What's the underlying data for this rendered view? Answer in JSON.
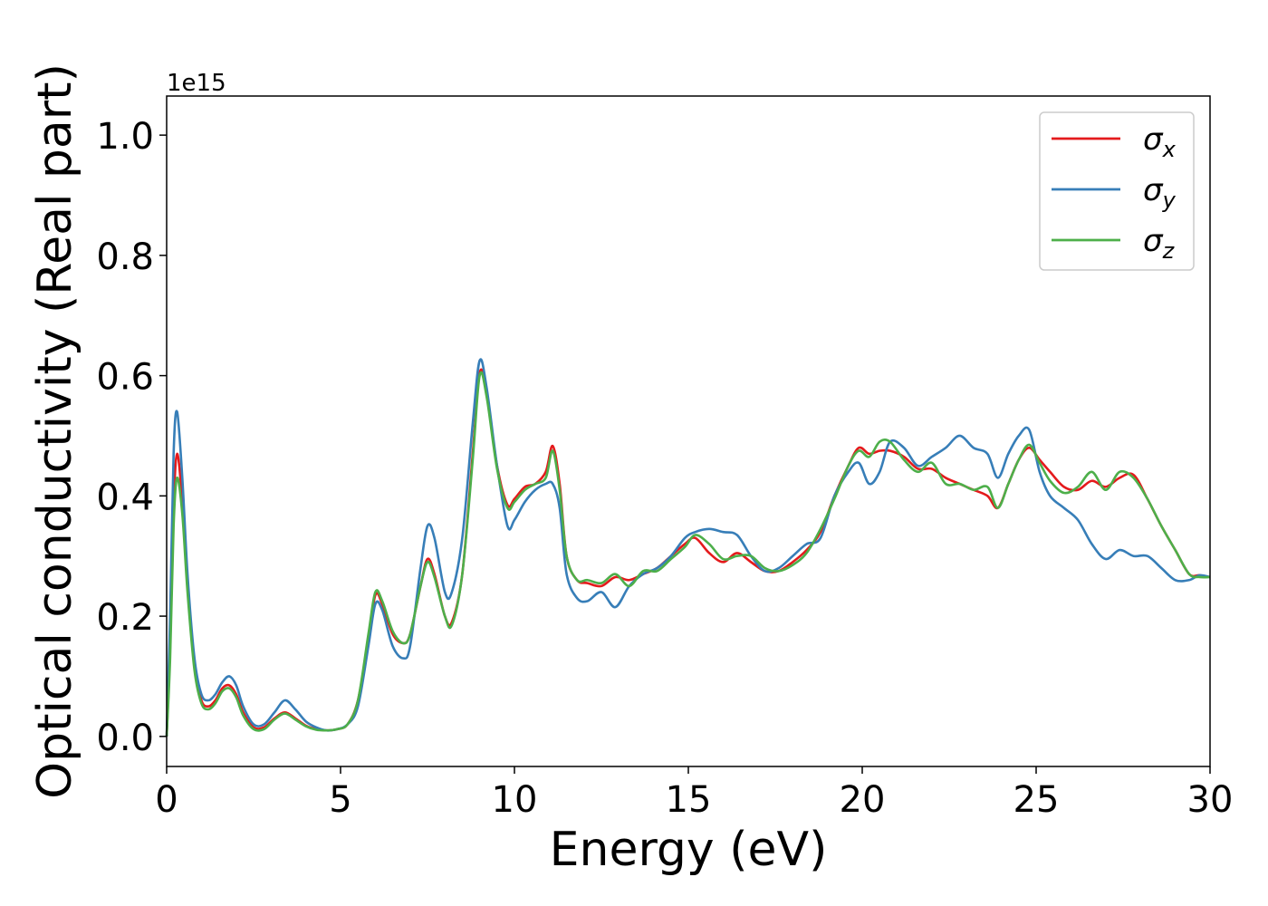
{
  "chart_data": {
    "type": "line",
    "xlabel": "Energy (eV)",
    "ylabel": "Optical conductivity (Real part)",
    "y_offset_label": "1e15",
    "xlim": [
      0,
      30
    ],
    "ylim": [
      -0.05,
      1.065
    ],
    "xticks": [
      0,
      5,
      10,
      15,
      20,
      25,
      30
    ],
    "yticks": [
      0.0,
      0.2,
      0.4,
      0.6,
      0.8,
      1.0
    ],
    "ytick_labels": [
      "0.0",
      "0.2",
      "0.4",
      "0.6",
      "0.8",
      "1.0"
    ],
    "grid": false,
    "legend_position": "top-right",
    "series": [
      {
        "name": "σx",
        "symbol": "σ",
        "subscript": "x",
        "color": "#e41a1c",
        "x": [
          0,
          0.1,
          0.2,
          0.3,
          0.45,
          0.6,
          0.8,
          1.0,
          1.2,
          1.4,
          1.6,
          1.8,
          2.0,
          2.2,
          2.5,
          2.8,
          3.1,
          3.4,
          3.7,
          4.0,
          4.3,
          4.6,
          4.9,
          5.2,
          5.5,
          5.8,
          6.0,
          6.2,
          6.5,
          6.8,
          7.0,
          7.3,
          7.5,
          7.7,
          8.0,
          8.2,
          8.5,
          8.8,
          9.0,
          9.2,
          9.5,
          9.8,
          10.0,
          10.3,
          10.6,
          10.9,
          11.1,
          11.3,
          11.5,
          11.8,
          12.1,
          12.5,
          12.9,
          13.3,
          13.7,
          14.1,
          14.5,
          14.9,
          15.2,
          15.6,
          16.0,
          16.4,
          16.8,
          17.2,
          17.6,
          18.0,
          18.4,
          18.8,
          19.2,
          19.6,
          19.9,
          20.2,
          20.5,
          20.8,
          21.2,
          21.6,
          22.0,
          22.4,
          22.8,
          23.2,
          23.6,
          23.9,
          24.2,
          24.5,
          24.8,
          25.1,
          25.4,
          25.8,
          26.2,
          26.6,
          27.0,
          27.4,
          27.8,
          28.2,
          28.6,
          29.0,
          29.4,
          29.7,
          30.0
        ],
        "y": [
          0.0,
          0.15,
          0.38,
          0.47,
          0.39,
          0.25,
          0.12,
          0.06,
          0.05,
          0.06,
          0.08,
          0.085,
          0.07,
          0.04,
          0.015,
          0.015,
          0.03,
          0.04,
          0.03,
          0.018,
          0.012,
          0.01,
          0.012,
          0.02,
          0.06,
          0.16,
          0.235,
          0.22,
          0.17,
          0.155,
          0.17,
          0.25,
          0.295,
          0.27,
          0.2,
          0.19,
          0.27,
          0.47,
          0.605,
          0.57,
          0.45,
          0.385,
          0.395,
          0.415,
          0.42,
          0.44,
          0.483,
          0.42,
          0.3,
          0.26,
          0.255,
          0.25,
          0.265,
          0.26,
          0.27,
          0.28,
          0.3,
          0.32,
          0.33,
          0.305,
          0.29,
          0.305,
          0.29,
          0.275,
          0.275,
          0.29,
          0.31,
          0.34,
          0.4,
          0.45,
          0.48,
          0.47,
          0.475,
          0.475,
          0.465,
          0.445,
          0.445,
          0.43,
          0.42,
          0.41,
          0.4,
          0.38,
          0.42,
          0.46,
          0.48,
          0.46,
          0.44,
          0.415,
          0.41,
          0.425,
          0.415,
          0.43,
          0.435,
          0.395,
          0.35,
          0.31,
          0.27,
          0.268,
          0.265
        ]
      },
      {
        "name": "σy",
        "symbol": "σ",
        "subscript": "y",
        "color": "#377eb8",
        "x": [
          0,
          0.1,
          0.2,
          0.3,
          0.45,
          0.6,
          0.8,
          1.0,
          1.2,
          1.4,
          1.6,
          1.8,
          2.0,
          2.2,
          2.5,
          2.8,
          3.1,
          3.4,
          3.7,
          4.0,
          4.3,
          4.6,
          4.9,
          5.2,
          5.5,
          5.8,
          6.0,
          6.2,
          6.5,
          6.8,
          7.0,
          7.3,
          7.5,
          7.7,
          8.0,
          8.2,
          8.5,
          8.8,
          9.0,
          9.2,
          9.5,
          9.8,
          10.0,
          10.3,
          10.6,
          10.9,
          11.1,
          11.3,
          11.5,
          11.8,
          12.1,
          12.5,
          12.9,
          13.3,
          13.7,
          14.1,
          14.5,
          14.9,
          15.2,
          15.6,
          16.0,
          16.4,
          16.8,
          17.2,
          17.6,
          18.0,
          18.4,
          18.8,
          19.2,
          19.6,
          19.9,
          20.2,
          20.5,
          20.8,
          21.2,
          21.6,
          22.0,
          22.4,
          22.8,
          23.2,
          23.6,
          23.9,
          24.2,
          24.5,
          24.8,
          25.1,
          25.4,
          25.8,
          26.2,
          26.6,
          27.0,
          27.4,
          27.8,
          28.2,
          28.6,
          29.0,
          29.4,
          29.7,
          30.0
        ],
        "y": [
          0.0,
          0.2,
          0.47,
          0.54,
          0.43,
          0.27,
          0.13,
          0.07,
          0.06,
          0.07,
          0.09,
          0.1,
          0.085,
          0.05,
          0.02,
          0.02,
          0.04,
          0.06,
          0.045,
          0.025,
          0.015,
          0.01,
          0.012,
          0.02,
          0.05,
          0.15,
          0.22,
          0.21,
          0.15,
          0.13,
          0.15,
          0.28,
          0.35,
          0.33,
          0.24,
          0.24,
          0.33,
          0.52,
          0.625,
          0.58,
          0.45,
          0.35,
          0.36,
          0.39,
          0.41,
          0.42,
          0.42,
          0.38,
          0.27,
          0.23,
          0.225,
          0.24,
          0.215,
          0.25,
          0.27,
          0.28,
          0.3,
          0.33,
          0.34,
          0.345,
          0.34,
          0.335,
          0.3,
          0.275,
          0.28,
          0.3,
          0.32,
          0.33,
          0.4,
          0.44,
          0.455,
          0.42,
          0.44,
          0.49,
          0.48,
          0.45,
          0.465,
          0.48,
          0.5,
          0.48,
          0.47,
          0.43,
          0.47,
          0.5,
          0.51,
          0.44,
          0.4,
          0.38,
          0.36,
          0.32,
          0.295,
          0.31,
          0.3,
          0.3,
          0.28,
          0.26,
          0.26,
          0.268,
          0.265
        ]
      },
      {
        "name": "σz",
        "symbol": "σ",
        "subscript": "z",
        "color": "#4daf4a",
        "x": [
          0,
          0.1,
          0.2,
          0.3,
          0.45,
          0.6,
          0.8,
          1.0,
          1.2,
          1.4,
          1.6,
          1.8,
          2.0,
          2.2,
          2.5,
          2.8,
          3.1,
          3.4,
          3.7,
          4.0,
          4.3,
          4.6,
          4.9,
          5.2,
          5.5,
          5.8,
          6.0,
          6.2,
          6.5,
          6.8,
          7.0,
          7.3,
          7.5,
          7.7,
          8.0,
          8.2,
          8.5,
          8.8,
          9.0,
          9.2,
          9.5,
          9.8,
          10.0,
          10.3,
          10.6,
          10.9,
          11.1,
          11.3,
          11.5,
          11.8,
          12.1,
          12.5,
          12.9,
          13.3,
          13.7,
          14.1,
          14.5,
          14.9,
          15.2,
          15.6,
          16.0,
          16.4,
          16.8,
          17.2,
          17.6,
          18.0,
          18.4,
          18.8,
          19.2,
          19.6,
          19.9,
          20.2,
          20.5,
          20.8,
          21.2,
          21.6,
          22.0,
          22.4,
          22.8,
          23.2,
          23.6,
          23.9,
          24.2,
          24.5,
          24.8,
          25.1,
          25.4,
          25.8,
          26.2,
          26.6,
          27.0,
          27.4,
          27.8,
          28.2,
          28.6,
          29.0,
          29.4,
          29.7,
          30.0
        ],
        "y": [
          0.0,
          0.13,
          0.35,
          0.43,
          0.37,
          0.24,
          0.11,
          0.055,
          0.045,
          0.055,
          0.075,
          0.08,
          0.065,
          0.035,
          0.012,
          0.012,
          0.028,
          0.038,
          0.028,
          0.017,
          0.011,
          0.01,
          0.012,
          0.02,
          0.06,
          0.17,
          0.24,
          0.225,
          0.175,
          0.155,
          0.17,
          0.25,
          0.29,
          0.265,
          0.2,
          0.185,
          0.27,
          0.46,
          0.6,
          0.565,
          0.445,
          0.38,
          0.39,
          0.41,
          0.42,
          0.43,
          0.475,
          0.41,
          0.3,
          0.26,
          0.26,
          0.255,
          0.27,
          0.25,
          0.275,
          0.275,
          0.295,
          0.315,
          0.335,
          0.32,
          0.295,
          0.3,
          0.3,
          0.28,
          0.275,
          0.285,
          0.305,
          0.345,
          0.395,
          0.45,
          0.475,
          0.465,
          0.49,
          0.49,
          0.46,
          0.44,
          0.455,
          0.42,
          0.42,
          0.41,
          0.415,
          0.38,
          0.42,
          0.46,
          0.485,
          0.455,
          0.425,
          0.405,
          0.415,
          0.44,
          0.41,
          0.44,
          0.43,
          0.395,
          0.35,
          0.31,
          0.27,
          0.265,
          0.265
        ]
      }
    ]
  }
}
